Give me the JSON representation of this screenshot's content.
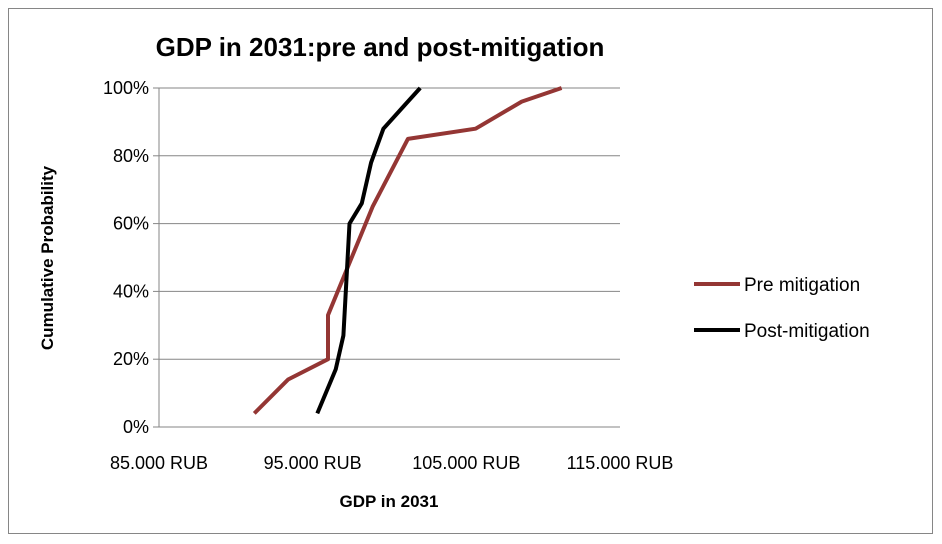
{
  "chart_data": {
    "type": "line",
    "title": "GDP in 2031:pre and post-mitigation",
    "xlabel": "GDP in 2031",
    "ylabel": "Cumulative Probability",
    "xlim": [
      85000,
      115000
    ],
    "ylim": [
      0,
      100
    ],
    "x_ticks": [
      85000,
      95000,
      105000,
      115000
    ],
    "x_tick_labels": [
      "85.000 RUB",
      "95.000 RUB",
      "105.000 RUB",
      "115.000 RUB"
    ],
    "y_ticks": [
      0,
      20,
      40,
      60,
      80,
      100
    ],
    "y_tick_labels": [
      "0%",
      "20%",
      "40%",
      "60%",
      "80%",
      "100%"
    ],
    "grid": true,
    "legend_position": "right",
    "series": [
      {
        "name": "Pre mitigation",
        "color": "#943634",
        "points": [
          [
            91200,
            4
          ],
          [
            93400,
            14
          ],
          [
            96000,
            20
          ],
          [
            96000,
            33
          ],
          [
            98900,
            65
          ],
          [
            101200,
            85
          ],
          [
            105600,
            88
          ],
          [
            108600,
            96
          ],
          [
            111200,
            100
          ]
        ]
      },
      {
        "name": "Post-mitigation",
        "color": "#000000",
        "points": [
          [
            95300,
            4
          ],
          [
            96500,
            17
          ],
          [
            97000,
            27
          ],
          [
            97400,
            60
          ],
          [
            98200,
            66
          ],
          [
            98800,
            78
          ],
          [
            99600,
            88
          ],
          [
            101000,
            95
          ],
          [
            102000,
            100
          ]
        ]
      }
    ]
  }
}
